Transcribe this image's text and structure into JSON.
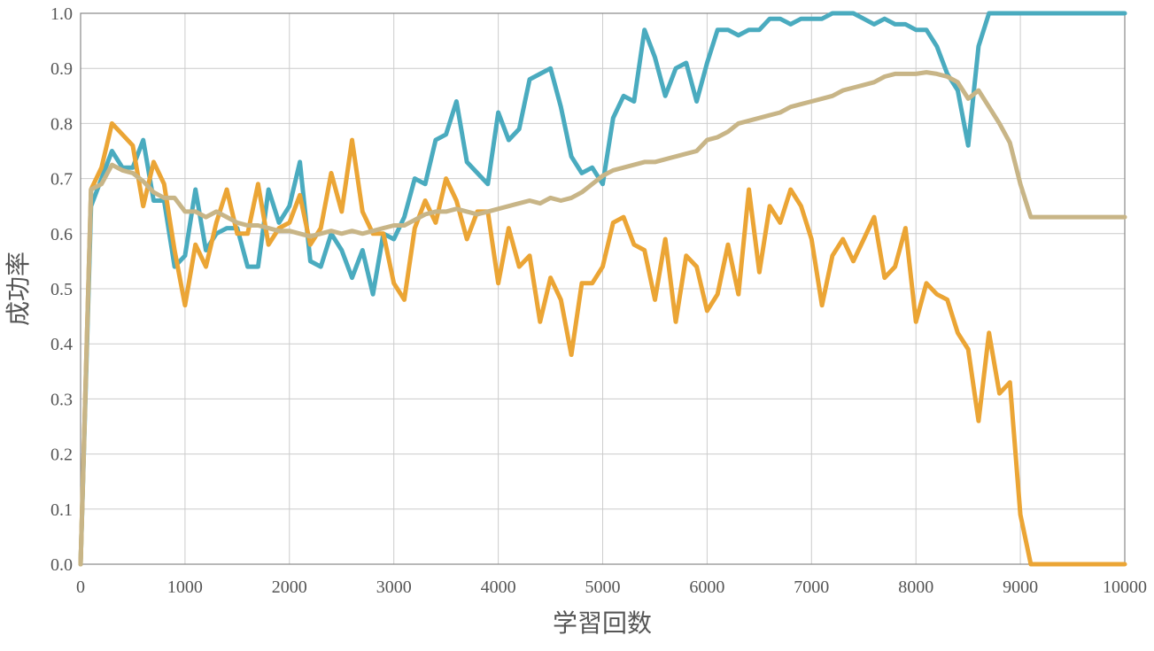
{
  "chart_data": {
    "type": "line",
    "title": "",
    "xlabel": "学習回数",
    "ylabel": "成功率",
    "xlim": [
      0,
      10000
    ],
    "ylim": [
      0,
      1.0
    ],
    "xticks": [
      0,
      1000,
      2000,
      3000,
      4000,
      5000,
      6000,
      7000,
      8000,
      9000,
      10000
    ],
    "yticks": [
      0.0,
      0.1,
      0.2,
      0.3,
      0.4,
      0.5,
      0.6,
      0.7,
      0.8,
      0.9,
      1.0
    ],
    "ytick_labels": [
      "0.0",
      "0.1",
      "0.2",
      "0.3",
      "0.4",
      "0.5",
      "0.6",
      "0.7",
      "0.8",
      "0.9",
      "1.0"
    ],
    "grid": true,
    "legend": "none",
    "x": [
      0,
      100,
      200,
      300,
      400,
      500,
      600,
      700,
      800,
      900,
      1000,
      1100,
      1200,
      1300,
      1400,
      1500,
      1600,
      1700,
      1800,
      1900,
      2000,
      2100,
      2200,
      2300,
      2400,
      2500,
      2600,
      2700,
      2800,
      2900,
      3000,
      3100,
      3200,
      3300,
      3400,
      3500,
      3600,
      3700,
      3800,
      3900,
      4000,
      4100,
      4200,
      4300,
      4400,
      4500,
      4600,
      4700,
      4800,
      4900,
      5000,
      5100,
      5200,
      5300,
      5400,
      5500,
      5600,
      5700,
      5800,
      5900,
      6000,
      6100,
      6200,
      6300,
      6400,
      6500,
      6600,
      6700,
      6800,
      6900,
      7000,
      7100,
      7200,
      7300,
      7400,
      7500,
      7600,
      7700,
      7800,
      7900,
      8000,
      8100,
      8200,
      8300,
      8400,
      8500,
      8600,
      8700,
      8800,
      8900,
      9000,
      9100,
      9200,
      9300,
      9400,
      9500,
      9600,
      9700,
      9800,
      9900,
      10000
    ],
    "series": [
      {
        "color": "#4aabbf",
        "values": [
          0,
          0.65,
          0.7,
          0.75,
          0.72,
          0.72,
          0.77,
          0.66,
          0.66,
          0.54,
          0.56,
          0.68,
          0.57,
          0.6,
          0.61,
          0.61,
          0.54,
          0.54,
          0.68,
          0.62,
          0.65,
          0.73,
          0.55,
          0.54,
          0.6,
          0.57,
          0.52,
          0.57,
          0.49,
          0.6,
          0.59,
          0.63,
          0.7,
          0.69,
          0.77,
          0.78,
          0.84,
          0.73,
          0.71,
          0.69,
          0.82,
          0.77,
          0.79,
          0.88,
          0.89,
          0.9,
          0.83,
          0.74,
          0.71,
          0.72,
          0.69,
          0.81,
          0.85,
          0.84,
          0.97,
          0.92,
          0.85,
          0.9,
          0.91,
          0.84,
          0.91,
          0.97,
          0.97,
          0.96,
          0.97,
          0.97,
          0.99,
          0.99,
          0.98,
          0.99,
          0.99,
          0.99,
          1.0,
          1.0,
          1.0,
          0.99,
          0.98,
          0.99,
          0.98,
          0.98,
          0.97,
          0.97,
          0.94,
          0.89,
          0.86,
          0.76,
          0.94,
          1.0,
          1.0,
          1.0,
          1.0,
          1.0,
          1.0,
          1.0,
          1.0,
          1.0,
          1.0,
          1.0,
          1.0,
          1.0,
          1.0
        ]
      },
      {
        "color": "#eba535",
        "values": [
          0,
          0.68,
          0.72,
          0.8,
          0.78,
          0.76,
          0.65,
          0.73,
          0.69,
          0.57,
          0.47,
          0.58,
          0.54,
          0.62,
          0.68,
          0.6,
          0.6,
          0.69,
          0.58,
          0.61,
          0.62,
          0.67,
          0.58,
          0.61,
          0.71,
          0.64,
          0.77,
          0.64,
          0.6,
          0.6,
          0.51,
          0.48,
          0.61,
          0.66,
          0.62,
          0.7,
          0.66,
          0.59,
          0.64,
          0.64,
          0.51,
          0.61,
          0.54,
          0.56,
          0.44,
          0.52,
          0.48,
          0.38,
          0.51,
          0.51,
          0.54,
          0.62,
          0.63,
          0.58,
          0.57,
          0.48,
          0.59,
          0.44,
          0.56,
          0.54,
          0.46,
          0.49,
          0.58,
          0.49,
          0.68,
          0.53,
          0.65,
          0.62,
          0.68,
          0.65,
          0.59,
          0.47,
          0.56,
          0.59,
          0.55,
          0.59,
          0.63,
          0.52,
          0.54,
          0.61,
          0.44,
          0.51,
          0.49,
          0.48,
          0.42,
          0.39,
          0.26,
          0.42,
          0.31,
          0.33,
          0.09,
          0,
          0,
          0,
          0,
          0,
          0,
          0,
          0,
          0,
          0
        ]
      },
      {
        "color": "#c8b587",
        "values": [
          0,
          0.68,
          0.69,
          0.725,
          0.715,
          0.71,
          0.695,
          0.675,
          0.665,
          0.665,
          0.64,
          0.64,
          0.63,
          0.64,
          0.63,
          0.62,
          0.615,
          0.615,
          0.61,
          0.605,
          0.605,
          0.6,
          0.595,
          0.6,
          0.605,
          0.6,
          0.605,
          0.6,
          0.605,
          0.61,
          0.615,
          0.615,
          0.625,
          0.635,
          0.64,
          0.64,
          0.645,
          0.64,
          0.635,
          0.64,
          0.645,
          0.65,
          0.655,
          0.66,
          0.655,
          0.665,
          0.66,
          0.665,
          0.675,
          0.69,
          0.705,
          0.715,
          0.72,
          0.725,
          0.73,
          0.73,
          0.735,
          0.74,
          0.745,
          0.75,
          0.77,
          0.775,
          0.785,
          0.8,
          0.805,
          0.81,
          0.815,
          0.82,
          0.83,
          0.835,
          0.84,
          0.845,
          0.85,
          0.86,
          0.865,
          0.87,
          0.875,
          0.885,
          0.89,
          0.89,
          0.89,
          0.893,
          0.89,
          0.885,
          0.875,
          0.845,
          0.86,
          0.83,
          0.8,
          0.765,
          0.69,
          0.63,
          0.63,
          0.63,
          0.63,
          0.63,
          0.63,
          0.63,
          0.63,
          0.63,
          0.63
        ]
      }
    ]
  }
}
